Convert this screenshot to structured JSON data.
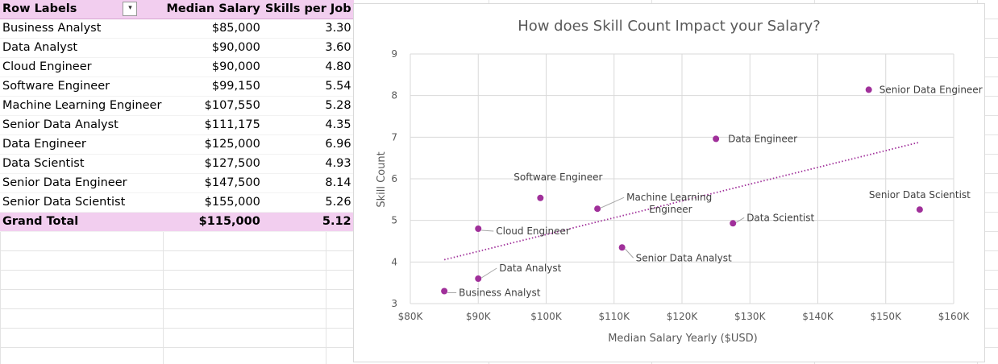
{
  "pivot": {
    "headers": [
      "Row Labels",
      "Median Salary",
      "Skills per Job"
    ],
    "rows": [
      {
        "label": "Business Analyst",
        "salary": "$85,000",
        "skills": "3.30"
      },
      {
        "label": "Data Analyst",
        "salary": "$90,000",
        "skills": "3.60"
      },
      {
        "label": "Cloud Engineer",
        "salary": "$90,000",
        "skills": "4.80"
      },
      {
        "label": "Software Engineer",
        "salary": "$99,150",
        "skills": "5.54"
      },
      {
        "label": "Machine Learning Engineer",
        "salary": "$107,550",
        "skills": "5.28"
      },
      {
        "label": "Senior Data Analyst",
        "salary": "$111,175",
        "skills": "4.35"
      },
      {
        "label": "Data Engineer",
        "salary": "$125,000",
        "skills": "6.96"
      },
      {
        "label": "Data Scientist",
        "salary": "$127,500",
        "skills": "4.93"
      },
      {
        "label": "Senior Data Engineer",
        "salary": "$147,500",
        "skills": "8.14"
      },
      {
        "label": "Senior Data Scientist",
        "salary": "$155,000",
        "skills": "5.26"
      }
    ],
    "total": {
      "label": "Grand Total",
      "salary": "$115,000",
      "skills": "5.12"
    }
  },
  "chart_data": {
    "type": "scatter",
    "title": "How does Skill Count Impact your Salary?",
    "xlabel": "Median Salary Yearly ($USD)",
    "ylabel": "Skill Count",
    "xlim": [
      80000,
      160000
    ],
    "ylim": [
      3,
      9
    ],
    "xticks": [
      80000,
      90000,
      100000,
      110000,
      120000,
      130000,
      140000,
      150000,
      160000
    ],
    "xtick_labels": [
      "$80K",
      "$90K",
      "$100K",
      "$110K",
      "$120K",
      "$130K",
      "$140K",
      "$150K",
      "$160K"
    ],
    "yticks": [
      3,
      4,
      5,
      6,
      7,
      8,
      9
    ],
    "ytick_labels": [
      "3",
      "4",
      "5",
      "6",
      "7",
      "8",
      "9"
    ],
    "grid": true,
    "trendline": {
      "type": "linear",
      "style": "dotted"
    },
    "points": [
      {
        "label": "Business Analyst",
        "x": 85000,
        "y": 3.3
      },
      {
        "label": "Data Analyst",
        "x": 90000,
        "y": 3.6
      },
      {
        "label": "Cloud Engineer",
        "x": 90000,
        "y": 4.8
      },
      {
        "label": "Software Engineer",
        "x": 99150,
        "y": 5.54
      },
      {
        "label": "Machine Learning Engineer",
        "x": 107550,
        "y": 5.28
      },
      {
        "label": "Senior Data Analyst",
        "x": 111175,
        "y": 4.35
      },
      {
        "label": "Data Engineer",
        "x": 125000,
        "y": 6.96
      },
      {
        "label": "Data Scientist",
        "x": 127500,
        "y": 4.93
      },
      {
        "label": "Senior Data Engineer",
        "x": 147500,
        "y": 8.14
      },
      {
        "label": "Senior Data Scientist",
        "x": 155000,
        "y": 5.26
      }
    ],
    "colors": {
      "point": "#a0309a",
      "trend": "#a0309a",
      "grid": "#d9d9d9",
      "text": "#595959"
    }
  }
}
